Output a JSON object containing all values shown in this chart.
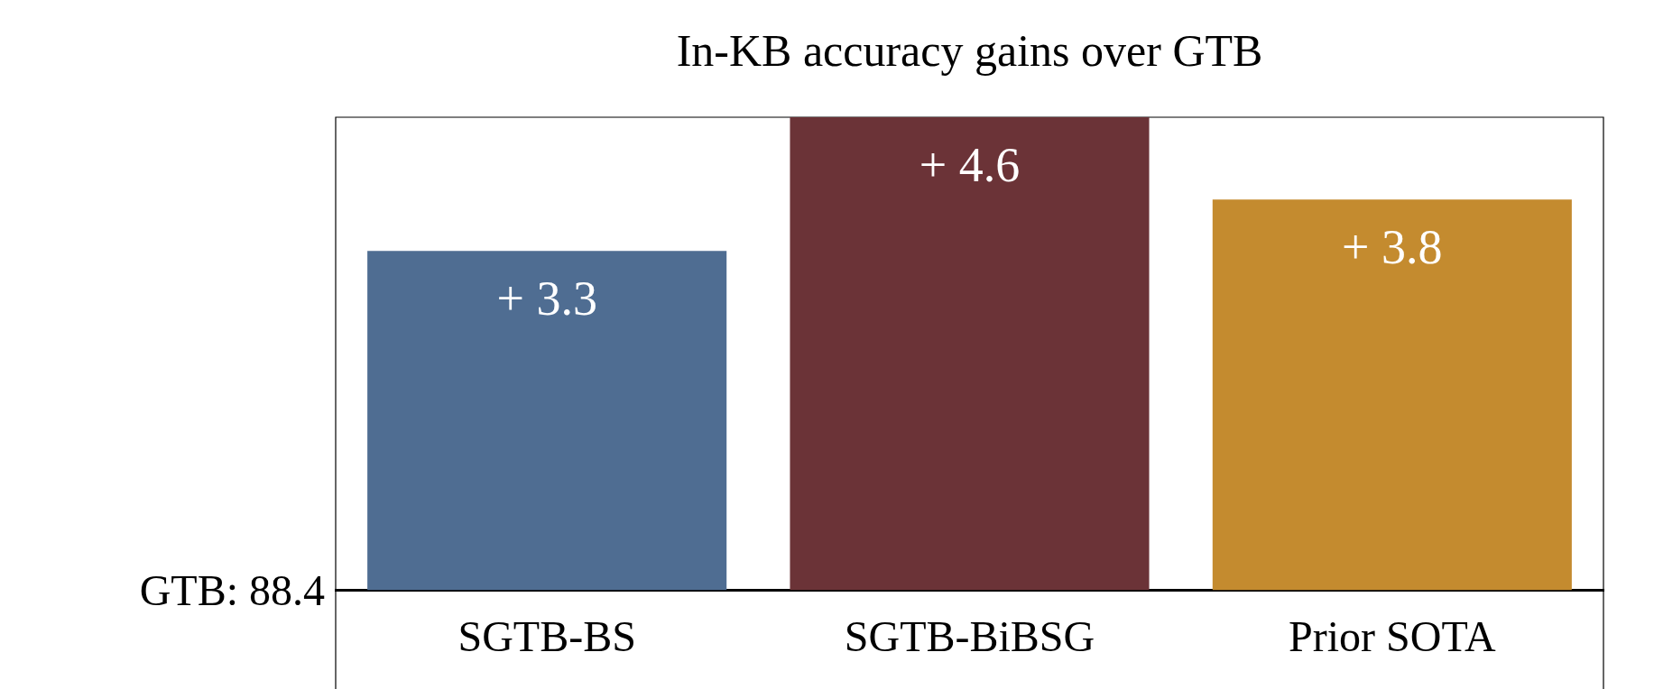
{
  "chart_data": {
    "type": "bar",
    "title": "In-KB accuracy gains over GTB",
    "categories": [
      "SGTB-BS",
      "SGTB-BiBSG",
      "Prior SOTA"
    ],
    "values": [
      3.3,
      4.6,
      3.8
    ],
    "colors": [
      "#4f6d92",
      "#6b3337",
      "#c48b2f"
    ],
    "value_labels": [
      "+ 3.3",
      "+ 4.6",
      "+ 3.8"
    ],
    "ylim": [
      0,
      4.6
    ],
    "annotations": [
      "GTB: 88.4"
    ],
    "grid": false,
    "legend": false
  }
}
